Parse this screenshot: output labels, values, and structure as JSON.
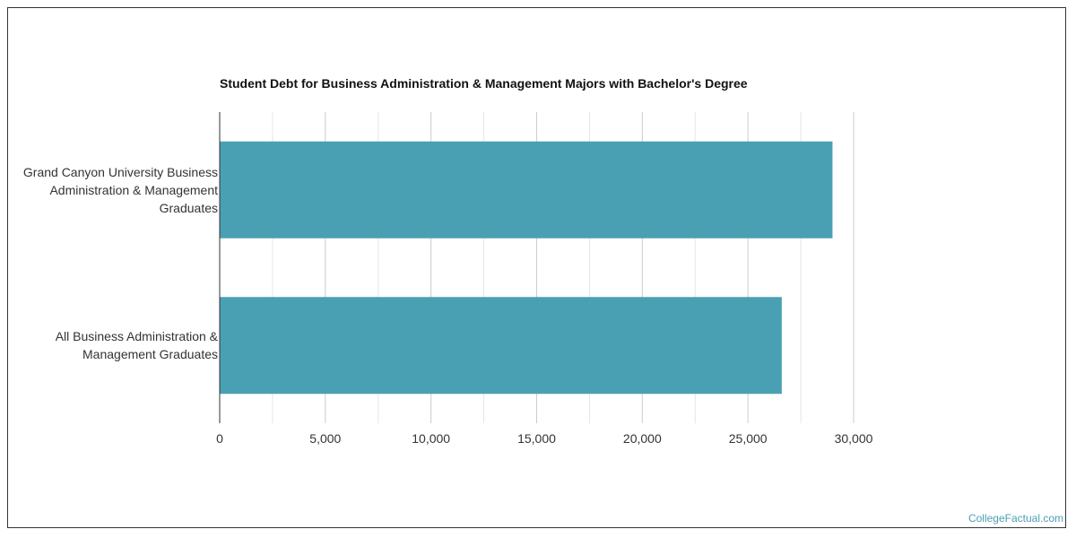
{
  "chart_data": {
    "type": "bar",
    "orientation": "horizontal",
    "title": "Student Debt for Business Administration & Management Majors with Bachelor's Degree",
    "categories": [
      "Grand Canyon University Business\nAdministration & Management\nGraduates",
      "All Business Administration &\nManagement Graduates"
    ],
    "values": [
      29000,
      26600
    ],
    "xlim": [
      0,
      30000
    ],
    "ticks": [
      0,
      5000,
      10000,
      15000,
      20000,
      25000,
      30000
    ],
    "tick_labels": [
      "0",
      "5,000",
      "10,000",
      "15,000",
      "20,000",
      "25,000",
      "30,000"
    ],
    "bar_color": "#4aa0b3",
    "grid": true,
    "legend": "none"
  },
  "watermark": "CollegeFactual.com"
}
